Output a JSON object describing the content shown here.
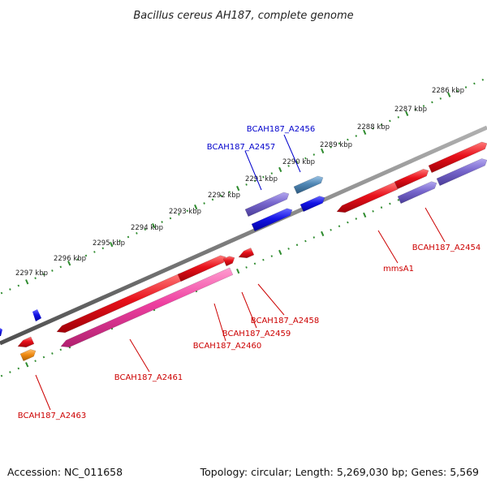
{
  "title": "Bacillus cereus AH187, complete genome",
  "footer": {
    "accession": "Accession: NC_011658",
    "info": "Topology: circular; Length: 5,269,030 bp; Genes: 5,569"
  },
  "scale_labels": [
    "2286 kbp",
    "2287 kbp",
    "2288 kbp",
    "2289 kbp",
    "2290 kbp",
    "2291 kbp",
    "2292 kbp",
    "2293 kbp",
    "2294 kbp",
    "2295 kbp",
    "2296 kbp",
    "2297 kbp"
  ],
  "gene_labels": {
    "a2456": "BCAH187_A2456",
    "a2457": "BCAH187_A2457",
    "a2454": "BCAH187_A2454",
    "mmsa1": "mmsA1",
    "a2458": "BCAH187_A2458",
    "a2459": "BCAH187_A2459",
    "a2460": "BCAH187_A2460",
    "a2461": "BCAH187_A2461",
    "a2463": "BCAH187_A2463"
  },
  "colors": {
    "backbone": "#808080",
    "scale_ticks": "#2e8b2e",
    "red_gene": "#e8101a",
    "pink_gene": "#ee3fa0",
    "purple_gene": "#7766cc",
    "blue_gene": "#1414e6",
    "steel_gene": "#4f86b4",
    "orange_gene": "#f08c14",
    "label_red": "#cc0000",
    "label_blue": "#0000cc"
  }
}
